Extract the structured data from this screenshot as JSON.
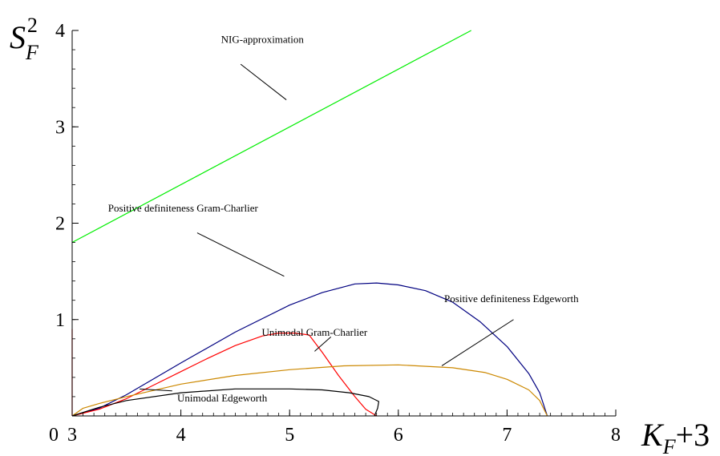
{
  "chart_data": {
    "type": "line",
    "xlim": [
      3,
      8
    ],
    "ylim": [
      0,
      4
    ],
    "x_ticks": [
      "3",
      "4",
      "5",
      "6",
      "7",
      "8"
    ],
    "y_ticks": [
      "1",
      "2",
      "3",
      "4"
    ],
    "origin_label": "0",
    "xlabel": {
      "main": "K",
      "sub": "F",
      "tail": "+3"
    },
    "ylabel": {
      "main": "S",
      "sub": "F",
      "sup": "2"
    },
    "grid": false,
    "legend": "none",
    "series": [
      {
        "color": "#00ee00",
        "points": [
          [
            3,
            1.8
          ],
          [
            6.67,
            4.0
          ]
        ]
      },
      {
        "color": "#000080",
        "points": [
          [
            3.0,
            0.0
          ],
          [
            3.25,
            0.08
          ],
          [
            3.5,
            0.22
          ],
          [
            4.0,
            0.55
          ],
          [
            4.5,
            0.87
          ],
          [
            5.0,
            1.15
          ],
          [
            5.3,
            1.28
          ],
          [
            5.6,
            1.37
          ],
          [
            5.8,
            1.38
          ],
          [
            6.0,
            1.36
          ],
          [
            6.25,
            1.3
          ],
          [
            6.5,
            1.18
          ],
          [
            6.75,
            0.98
          ],
          [
            7.0,
            0.72
          ],
          [
            7.2,
            0.44
          ],
          [
            7.3,
            0.24
          ],
          [
            7.37,
            0.0
          ]
        ]
      },
      {
        "color": "#ff0000",
        "points": [
          [
            3.0,
            0.0
          ],
          [
            3.25,
            0.07
          ],
          [
            3.5,
            0.18
          ],
          [
            3.75,
            0.32
          ],
          [
            4.0,
            0.46
          ],
          [
            4.25,
            0.6
          ],
          [
            4.5,
            0.73
          ],
          [
            4.75,
            0.83
          ],
          [
            4.9,
            0.86
          ],
          [
            5.05,
            0.86
          ],
          [
            5.18,
            0.84
          ],
          [
            5.3,
            0.66
          ],
          [
            5.45,
            0.42
          ],
          [
            5.6,
            0.2
          ],
          [
            5.7,
            0.07
          ],
          [
            5.8,
            0.0
          ]
        ]
      },
      {
        "color": "#cc8800",
        "points": [
          [
            3.0,
            0.0
          ],
          [
            3.1,
            0.08
          ],
          [
            3.25,
            0.13
          ],
          [
            3.5,
            0.2
          ],
          [
            4.0,
            0.33
          ],
          [
            4.5,
            0.42
          ],
          [
            5.0,
            0.48
          ],
          [
            5.5,
            0.52
          ],
          [
            6.0,
            0.53
          ],
          [
            6.5,
            0.5
          ],
          [
            6.8,
            0.45
          ],
          [
            7.0,
            0.38
          ],
          [
            7.2,
            0.27
          ],
          [
            7.3,
            0.16
          ],
          [
            7.37,
            0.0
          ]
        ]
      },
      {
        "color": "#000000",
        "points": [
          [
            3.0,
            0.0
          ],
          [
            3.25,
            0.09
          ],
          [
            3.5,
            0.16
          ],
          [
            4.0,
            0.24
          ],
          [
            4.5,
            0.28
          ],
          [
            5.0,
            0.28
          ],
          [
            5.3,
            0.27
          ],
          [
            5.55,
            0.24
          ],
          [
            5.73,
            0.2
          ],
          [
            5.82,
            0.15
          ],
          [
            5.81,
            0.08
          ],
          [
            5.78,
            0.0
          ]
        ]
      },
      {
        "color": "#ff0000",
        "points": [
          [
            3.0,
            0.0
          ],
          [
            3.0,
            0.9
          ]
        ]
      }
    ],
    "annotations": [
      {
        "text": "NIG-approximation",
        "pos": [
          4.75,
          3.87
        ],
        "pointer": [
          [
            4.55,
            3.65
          ],
          [
            4.97,
            3.28
          ]
        ]
      },
      {
        "text": "Positive definiteness Gram-Charlier",
        "pos": [
          4.02,
          2.12
        ],
        "pointer": [
          [
            4.15,
            1.9
          ],
          [
            4.95,
            1.45
          ]
        ]
      },
      {
        "text": "Positive definiteness Edgeworth",
        "pos": [
          7.04,
          1.18
        ],
        "pointer": [
          [
            7.06,
            1.0
          ],
          [
            6.4,
            0.52
          ]
        ]
      },
      {
        "text": "Unimodal Gram-Charlier",
        "pos": [
          5.23,
          0.83
        ],
        "pointer": [
          [
            5.38,
            0.82
          ],
          [
            5.23,
            0.67
          ]
        ]
      },
      {
        "text": "Unimodal Edgeworth",
        "pos": [
          4.38,
          0.15
        ],
        "pointer": [
          [
            3.92,
            0.26
          ],
          [
            3.62,
            0.28
          ]
        ]
      }
    ]
  }
}
